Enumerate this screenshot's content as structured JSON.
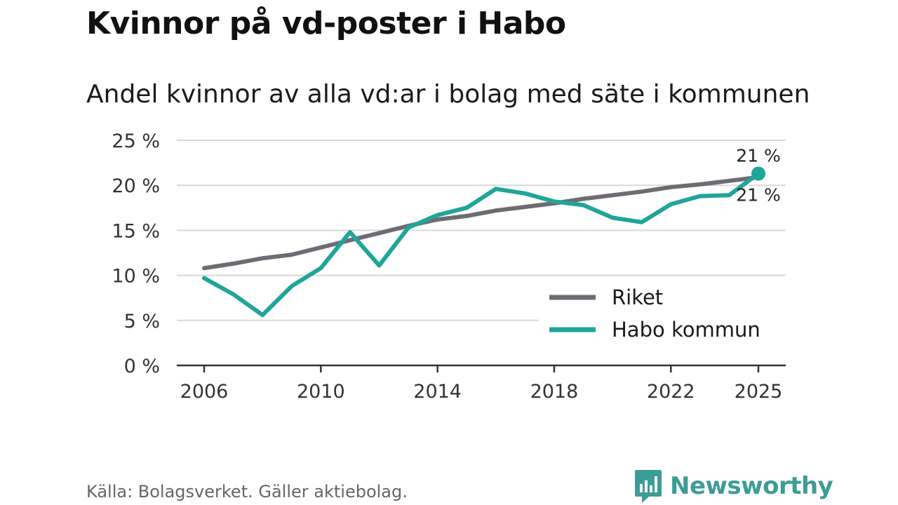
{
  "title": "Kvinnor på vd-poster i Habo",
  "subtitle": "Andel kvinnor av alla vd:ar i bolag med säte i kommunen",
  "source": "Källa: Bolagsverket. Gäller aktiebolag.",
  "brand": {
    "name": "Newsworthy",
    "icon": "newsworthy-logo-icon",
    "color": "#3c9d96"
  },
  "chart_data": {
    "type": "line",
    "title": "Kvinnor på vd-poster i Habo",
    "subtitle": "Andel kvinnor av alla vd:ar i bolag med säte i kommunen",
    "xlabel": "",
    "ylabel": "",
    "x_ticks": [
      "2006",
      "2010",
      "2014",
      "2018",
      "2022",
      "2025"
    ],
    "y_ticks": [
      "0 %",
      "5 %",
      "10 %",
      "15 %",
      "20 %",
      "25 %"
    ],
    "xlim": [
      2006,
      2025
    ],
    "ylim": [
      0,
      25
    ],
    "grid": true,
    "legend": "lower-right",
    "x": [
      2006,
      2007,
      2008,
      2009,
      2010,
      2011,
      2012,
      2013,
      2014,
      2015,
      2016,
      2017,
      2018,
      2019,
      2020,
      2021,
      2022,
      2023,
      2024,
      2025
    ],
    "series": [
      {
        "name": "Riket",
        "color": "#6e6c73",
        "values": [
          10.8,
          11.3,
          11.9,
          12.3,
          13.1,
          13.9,
          14.7,
          15.5,
          16.2,
          16.6,
          17.2,
          17.6,
          18.0,
          18.5,
          18.9,
          19.3,
          19.8,
          20.1,
          20.5,
          20.9
        ],
        "end_label": "21 %"
      },
      {
        "name": "Habo kommun",
        "color": "#1fa59a",
        "values": [
          9.7,
          7.9,
          5.6,
          8.8,
          10.8,
          14.8,
          11.1,
          15.3,
          16.7,
          17.5,
          19.6,
          19.1,
          18.2,
          17.8,
          16.4,
          15.9,
          17.9,
          18.8,
          18.9,
          21.3
        ],
        "end_label": "21 %"
      }
    ]
  }
}
